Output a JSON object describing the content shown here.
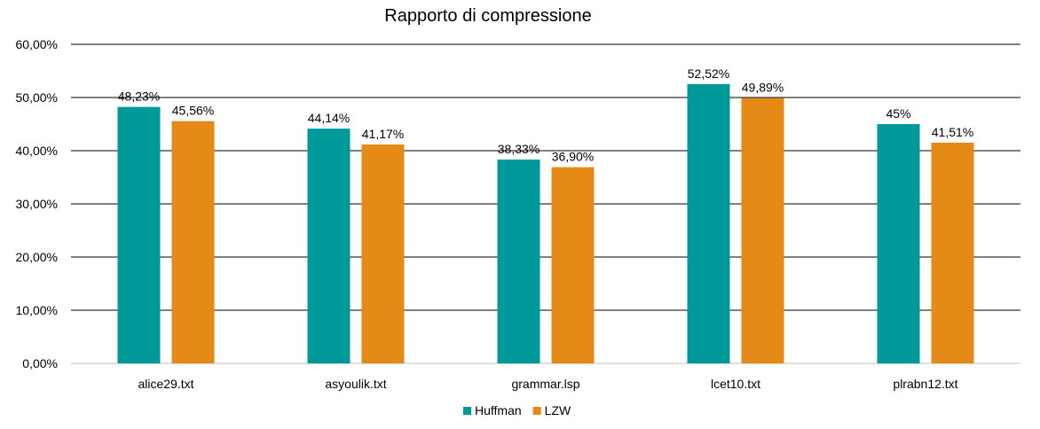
{
  "chart_data": {
    "type": "bar",
    "title": "Rapporto di compressione",
    "xlabel": "",
    "ylabel": "",
    "categories": [
      "alice29.txt",
      "asyoulik.txt",
      "grammar.lsp",
      "lcet10.txt",
      "plrabn12.txt"
    ],
    "series": [
      {
        "name": "Huffman",
        "color": "#009999",
        "values": [
          48.23,
          44.14,
          38.33,
          52.52,
          45.0
        ],
        "labels": [
          "48,23%",
          "44,14%",
          "38,33%",
          "52,52%",
          "45%"
        ]
      },
      {
        "name": "LZW",
        "color": "#E68A17",
        "values": [
          45.56,
          41.17,
          36.9,
          49.89,
          41.51
        ],
        "labels": [
          "45,56%",
          "41,17%",
          "36,90%",
          "49,89%",
          "41,51%"
        ]
      }
    ],
    "ylim": [
      0,
      60
    ],
    "yticks": [
      0,
      10,
      20,
      30,
      40,
      50,
      60
    ],
    "ytick_labels": [
      "0,00%",
      "10,00%",
      "20,00%",
      "30,00%",
      "40,00%",
      "50,00%",
      "60,00%"
    ],
    "grid": true,
    "legend_position": "bottom"
  }
}
